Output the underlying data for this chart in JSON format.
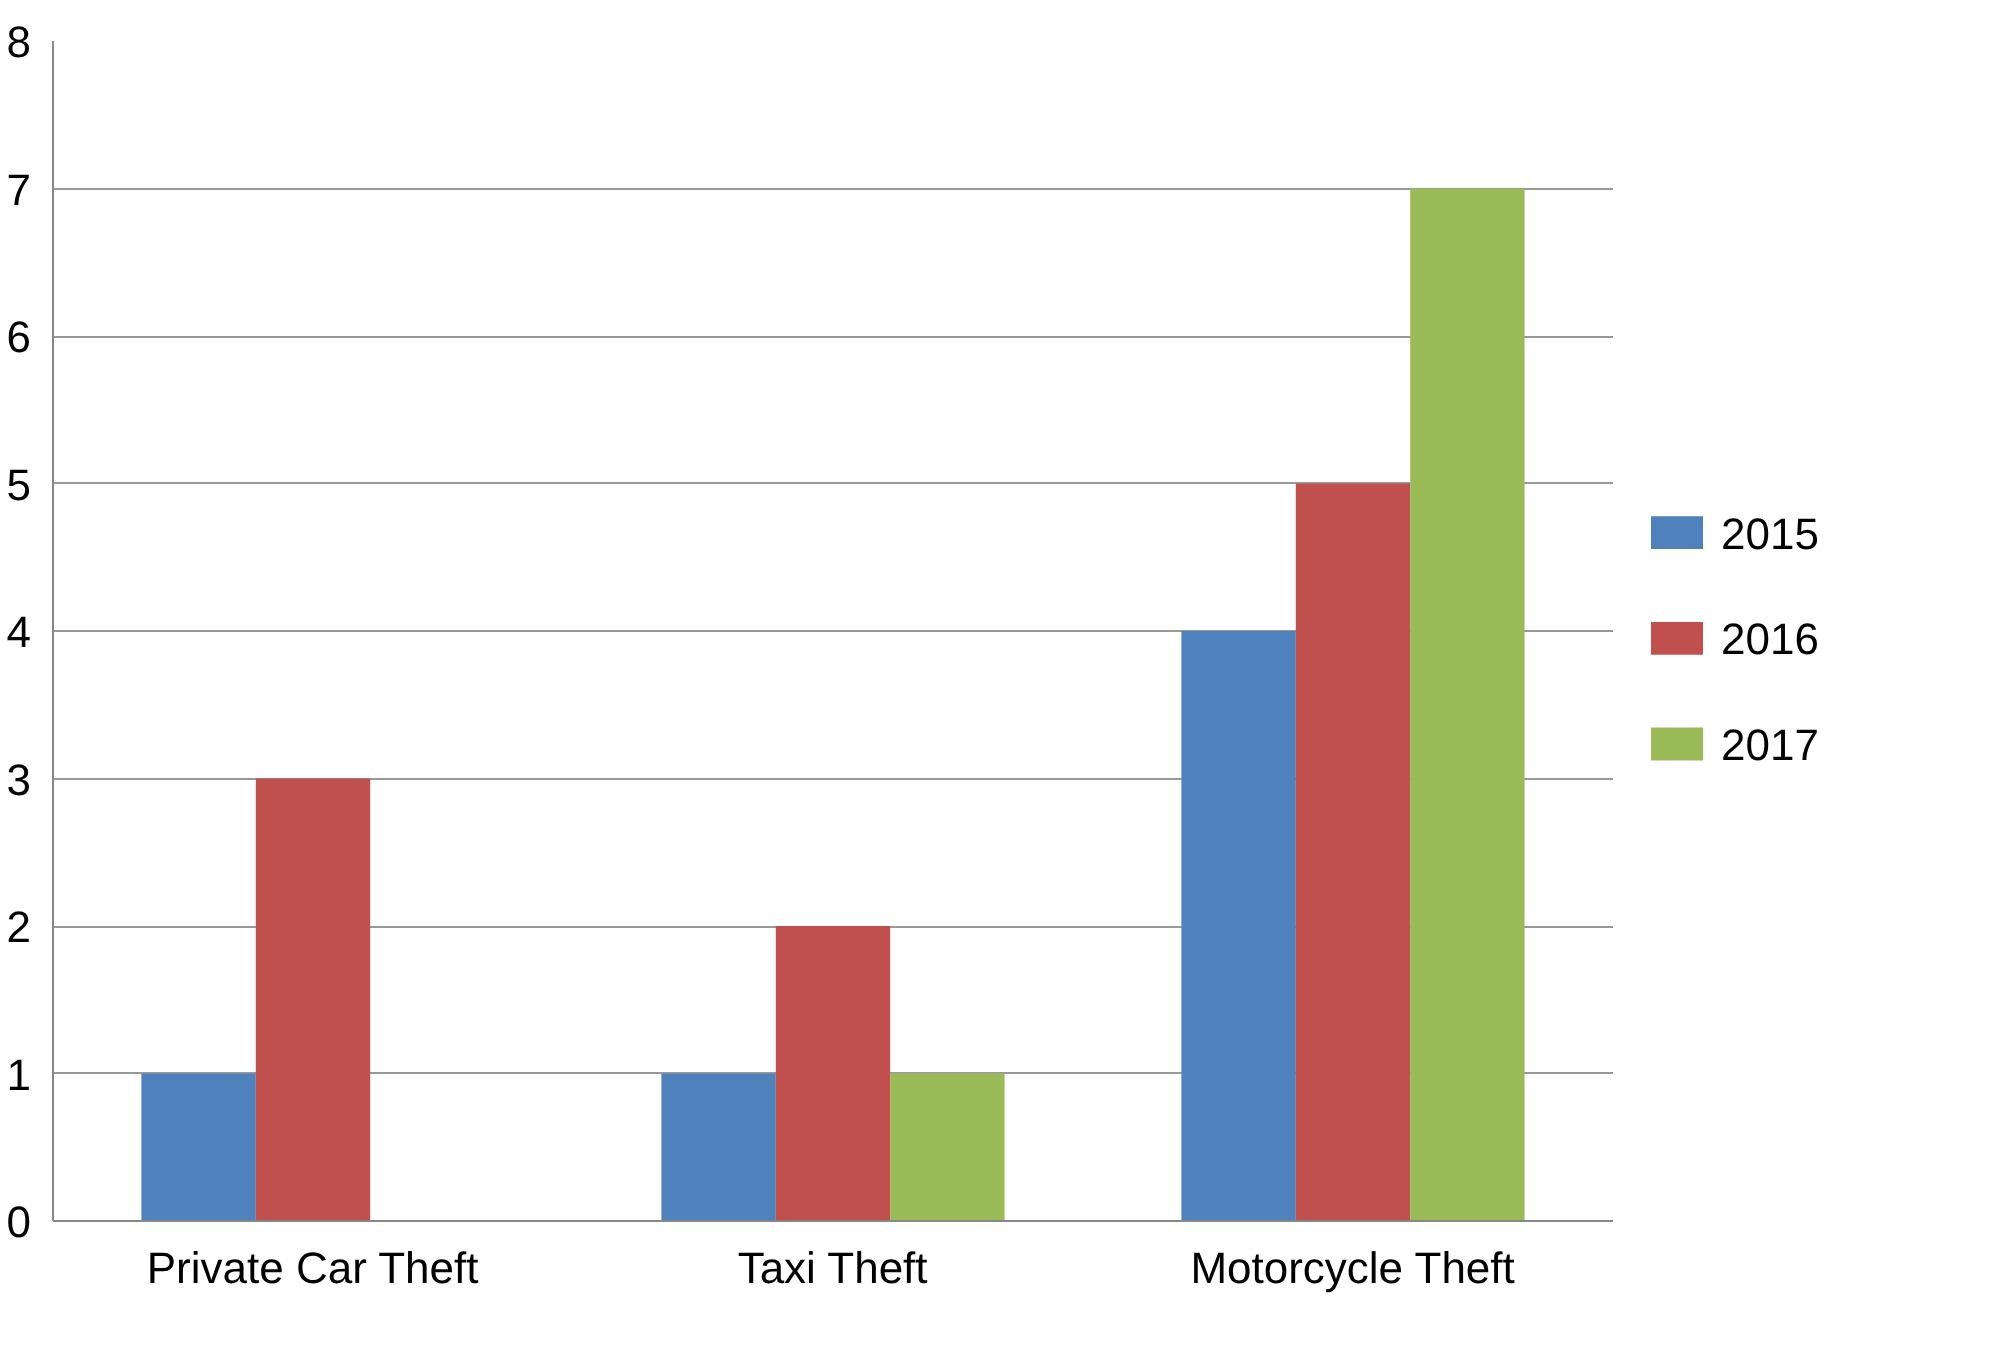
{
  "chart_data": {
    "type": "bar",
    "categories": [
      "Private Car Theft",
      "Taxi Theft",
      "Motorcycle Theft"
    ],
    "series": [
      {
        "name": "2015",
        "color": "#4f81bd",
        "values": [
          1,
          1,
          4
        ]
      },
      {
        "name": "2016",
        "color": "#c0504d",
        "values": [
          3,
          2,
          5
        ]
      },
      {
        "name": "2017",
        "color": "#9bbb59",
        "values": [
          0,
          1,
          7
        ]
      }
    ],
    "ylim": [
      0,
      8
    ],
    "yticks": [
      0,
      1,
      2,
      3,
      4,
      5,
      6,
      7,
      8
    ],
    "grid": "y",
    "legend": "right"
  }
}
